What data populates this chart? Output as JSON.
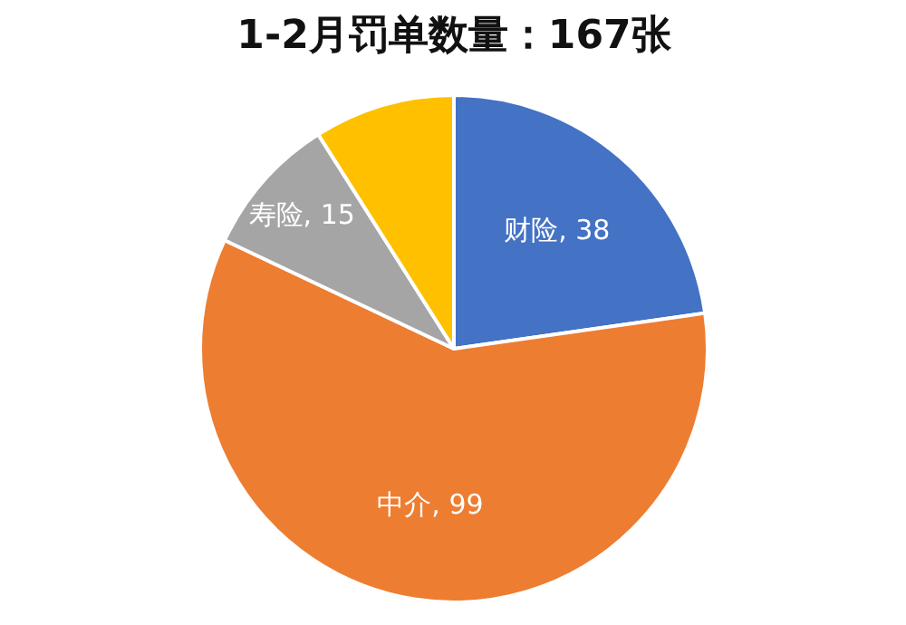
{
  "chart_data": {
    "type": "pie",
    "title": "1-2月罚单数量：167张",
    "categories": [
      "财险",
      "中介",
      "寿险",
      null
    ],
    "values": [
      38,
      99,
      15,
      15
    ],
    "value_labels": [
      "38",
      "99",
      "15",
      null
    ],
    "colors": [
      "#4472c4",
      "#ed7d31",
      "#a5a5a5",
      "#ffc000"
    ]
  }
}
